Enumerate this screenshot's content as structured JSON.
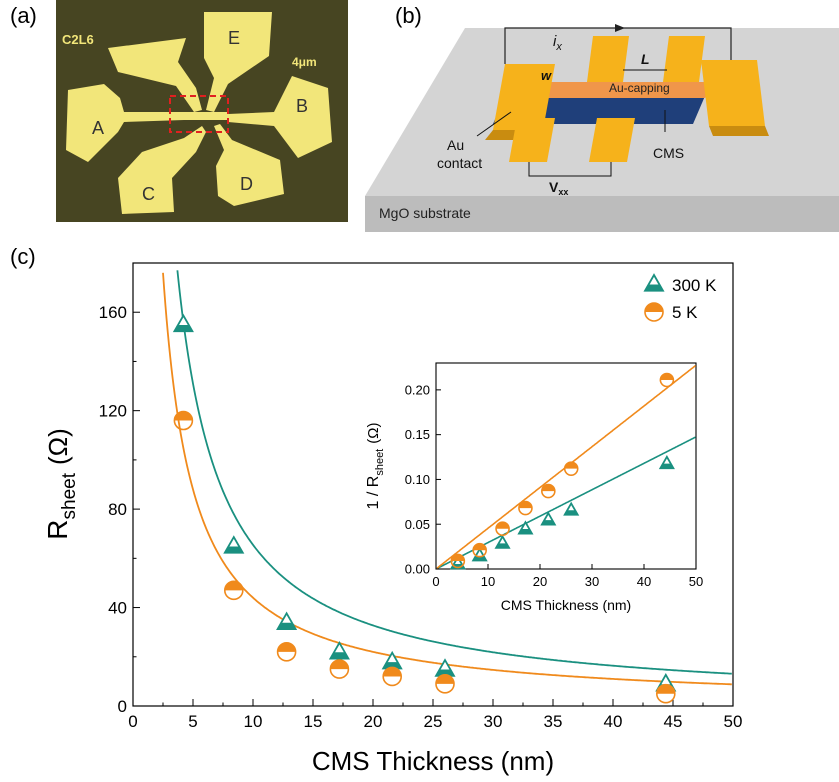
{
  "panel_labels": {
    "a": "(a)",
    "b": "(b)",
    "c": "(c)"
  },
  "panel_a": {
    "device_id": "C2L6",
    "scale": "4μm",
    "contacts": [
      "A",
      "B",
      "C",
      "D",
      "E"
    ],
    "colors": {
      "background": "#474522",
      "pads": "#f2e67a",
      "highlight": "#e02020"
    }
  },
  "panel_b": {
    "labels": {
      "current": "i",
      "current_sub": "x",
      "length": "L",
      "width": "w",
      "capping": "Au-capping",
      "contact_line1": "Au",
      "contact_line2": "contact",
      "cms": "CMS",
      "voltage": "V",
      "voltage_sub": "xx",
      "substrate": "MgO substrate"
    },
    "colors": {
      "contact": "#f6b21b",
      "capping": "#f0964a",
      "cms": "#1f3f7a",
      "substrate": "#d3d3d3"
    }
  },
  "chart_data": [
    {
      "type": "scatter",
      "xlabel": "CMS Thickness (nm)",
      "ylabel": "R",
      "ylabel_sub": "sheet",
      "ylabel_unit": "(Ω)",
      "xlim": [
        0,
        50
      ],
      "ylim": [
        0,
        180
      ],
      "xticks": [
        0,
        5,
        10,
        15,
        20,
        25,
        30,
        35,
        40,
        45,
        50
      ],
      "yticks": [
        0,
        40,
        80,
        120,
        160
      ],
      "legend_position": "top-right",
      "series": [
        {
          "name": "300 K",
          "marker": "triangle",
          "color": "#1a9080",
          "x": [
            4.2,
            8.4,
            12.8,
            17.2,
            21.6,
            26.0,
            44.4
          ],
          "y": [
            155,
            65,
            34,
            22,
            18,
            15,
            9
          ],
          "fit_coefficient": 655
        },
        {
          "name": "5 K",
          "marker": "circle",
          "color": "#f08a1c",
          "x": [
            4.2,
            8.4,
            12.8,
            17.2,
            21.6,
            26.0,
            44.4
          ],
          "y": [
            116,
            47,
            22,
            15,
            12,
            9,
            5
          ],
          "fit_coefficient": 440,
          "fit_offset": 1.8
        }
      ]
    },
    {
      "type": "scatter",
      "xlabel": "CMS Thickness (nm)",
      "ylabel": "1 / R",
      "ylabel_sub": "sheet",
      "ylabel_unit": "(Ω)",
      "xlim": [
        0,
        50
      ],
      "ylim": [
        0,
        0.23
      ],
      "xticks": [
        0,
        10,
        20,
        30,
        40,
        50
      ],
      "yticks": [
        0.0,
        0.05,
        0.1,
        0.15,
        0.2
      ],
      "series": [
        {
          "name": "300 K",
          "marker": "triangle",
          "color": "#1a9080",
          "x": [
            4.2,
            8.4,
            12.8,
            17.2,
            21.6,
            26.0,
            44.4
          ],
          "y": [
            0.006,
            0.015,
            0.029,
            0.045,
            0.055,
            0.066,
            0.118
          ],
          "fit_slope": 0.00295
        },
        {
          "name": "5 K",
          "marker": "circle",
          "color": "#f08a1c",
          "x": [
            4.2,
            8.4,
            12.8,
            17.2,
            21.6,
            26.0,
            44.4
          ],
          "y": [
            0.009,
            0.021,
            0.045,
            0.068,
            0.087,
            0.112,
            0.211
          ],
          "fit_slope": 0.00455
        }
      ]
    }
  ]
}
